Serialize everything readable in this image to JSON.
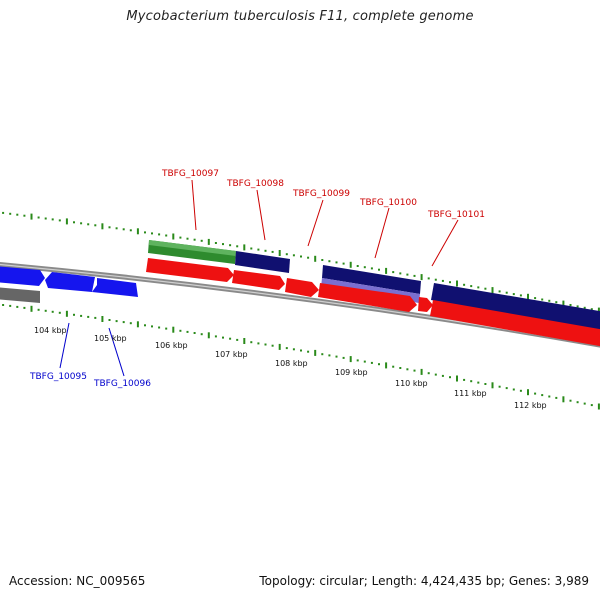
{
  "title": "Mycobacterium tuberculosis F11, complete genome",
  "footer": {
    "accession": "Accession: NC_009565",
    "summary": "Topology: circular; Length: 4,424,435 bp; Genes: 3,989"
  },
  "colors": {
    "backbone": "#8a8a8a",
    "tick": "#2a8a1a",
    "label_red": "#cc0000",
    "label_blue": "#0000cc",
    "cds_red": "#ee1111",
    "cds_blue": "#1515ee",
    "navy": "#101070",
    "lavender": "#7a6fd0",
    "green": "#2e8b2e",
    "gray": "#666666"
  },
  "scale": {
    "labels": [
      "104 kbp",
      "105 kbp",
      "106 kbp",
      "107 kbp",
      "108 kbp",
      "109 kbp",
      "110 kbp",
      "111 kbp",
      "112 kbp"
    ]
  },
  "genes": {
    "top": [
      "TBFG_10097",
      "TBFG_10098",
      "TBFG_10099",
      "TBFG_10100",
      "TBFG_10101"
    ],
    "bottom": [
      "TBFG_10095",
      "TBFG_10096"
    ]
  }
}
